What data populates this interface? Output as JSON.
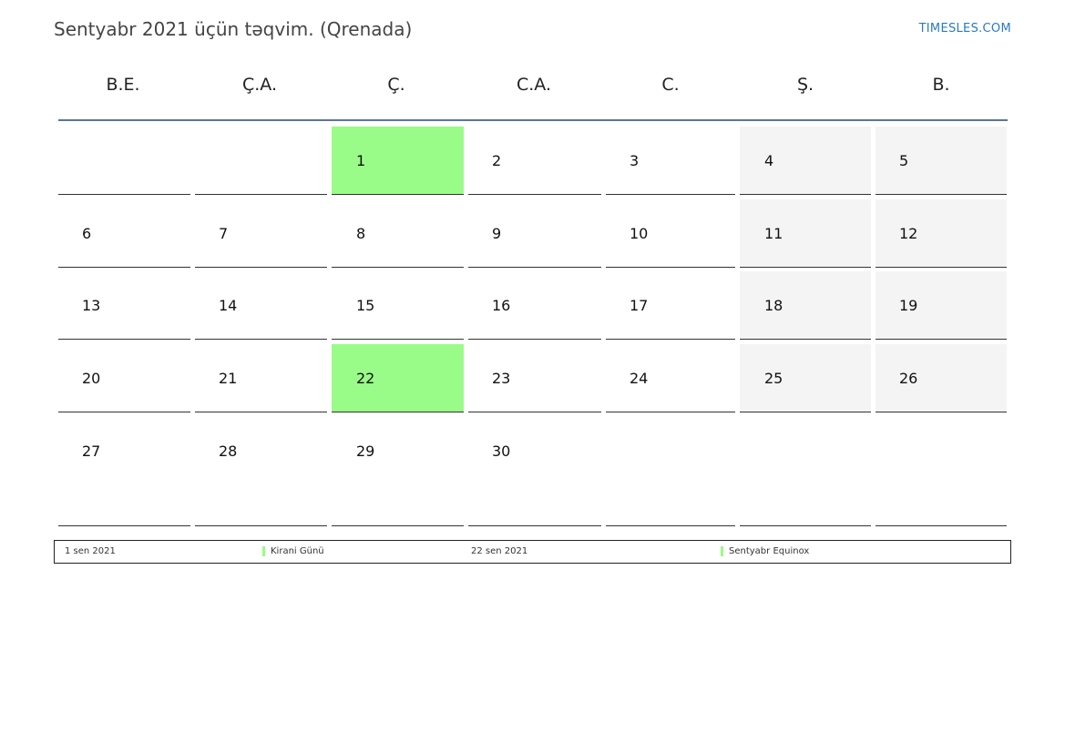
{
  "header": {
    "title": "Sentyabr 2021 üçün təqvim. (Qrenada)",
    "brand": "TIMESLES.COM"
  },
  "weekdays": [
    "B.E.",
    "Ç.A.",
    "Ç.",
    "C.A.",
    "C.",
    "Ş.",
    "B."
  ],
  "weeks": [
    [
      "",
      "",
      "1",
      "2",
      "3",
      "4",
      "5"
    ],
    [
      "6",
      "7",
      "8",
      "9",
      "10",
      "11",
      "12"
    ],
    [
      "13",
      "14",
      "15",
      "16",
      "17",
      "18",
      "19"
    ],
    [
      "20",
      "21",
      "22",
      "23",
      "24",
      "25",
      "26"
    ],
    [
      "27",
      "28",
      "29",
      "30",
      "",
      "",
      ""
    ]
  ],
  "colors": {
    "holiday": "#9afc88",
    "weekend": "#f4f4f4",
    "header_rule": "#5b7697",
    "brand": "#2b7bbd"
  },
  "holiday_days": [
    "1",
    "22"
  ],
  "legend": [
    {
      "date": "1 sen 2021",
      "name": "Kirani Günü"
    },
    {
      "date": "22 sen 2021",
      "name": "Sentyabr Equinox"
    }
  ]
}
